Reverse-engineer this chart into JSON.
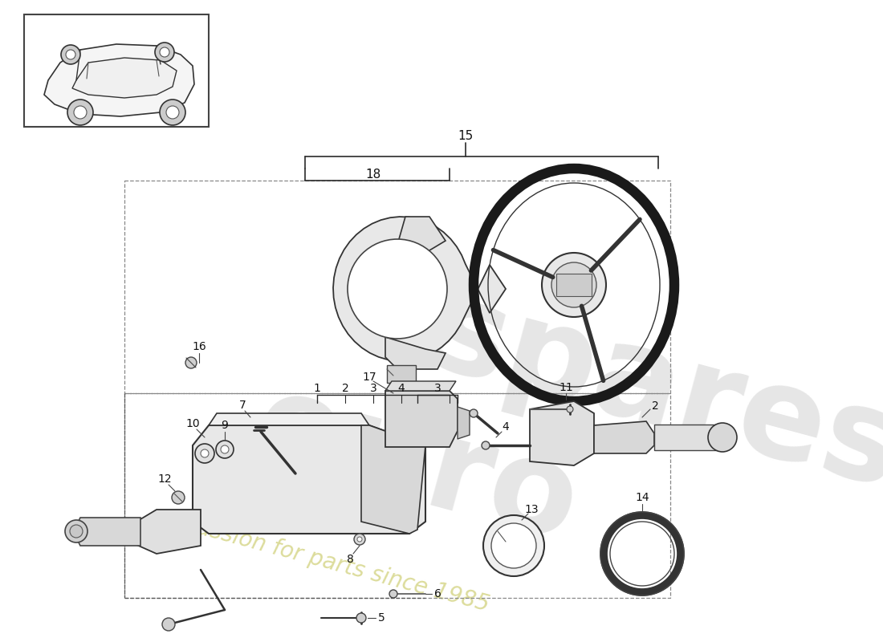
{
  "bg": "#ffffff",
  "lc": "#2a2a2a",
  "lc_light": "#888888",
  "lc_dash": "#888888",
  "wm1_color": "#c8c8c8",
  "wm2_color": "#d8d890",
  "parts": [
    1,
    2,
    3,
    4,
    5,
    6,
    7,
    8,
    9,
    10,
    11,
    12,
    13,
    14,
    15,
    16,
    17,
    18
  ]
}
